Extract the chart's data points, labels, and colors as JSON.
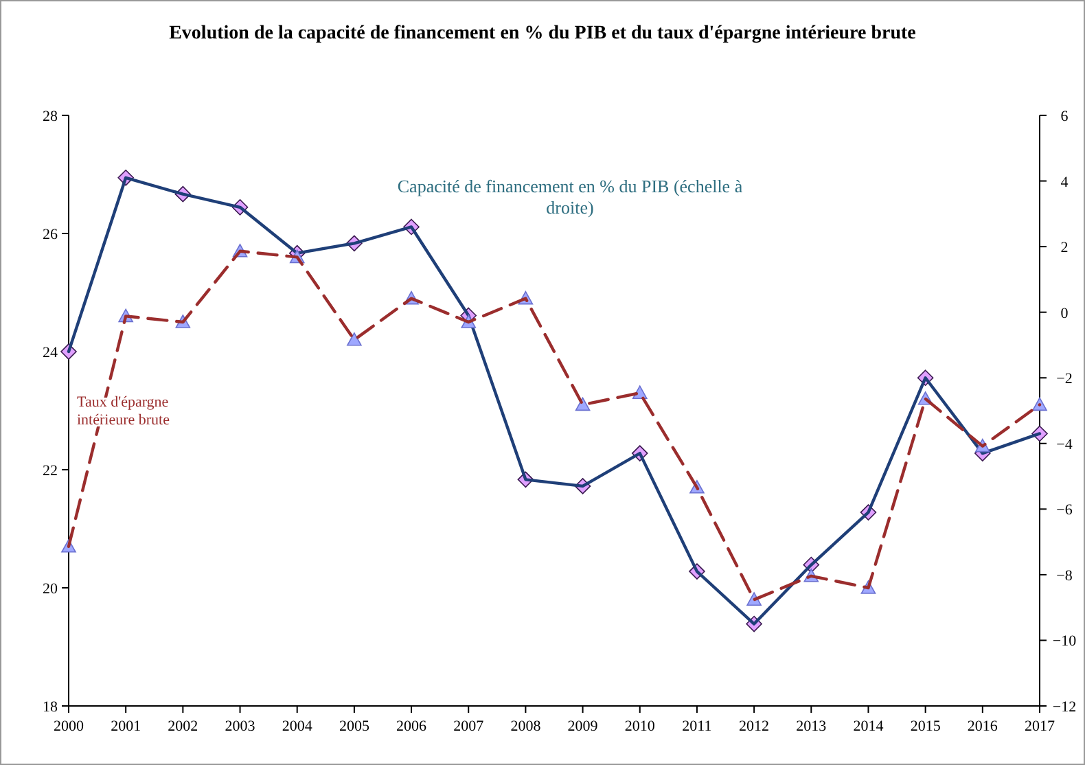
{
  "chart_data": {
    "type": "line",
    "title": "Evolution de la capacité de financement en % du PIB et du taux d'épargne intérieure brute",
    "x": [
      2000,
      2001,
      2002,
      2003,
      2004,
      2005,
      2006,
      2007,
      2008,
      2009,
      2010,
      2011,
      2012,
      2013,
      2014,
      2015,
      2016,
      2017
    ],
    "xlim": [
      2000,
      2017
    ],
    "xticks": [
      2000,
      2001,
      2002,
      2003,
      2004,
      2005,
      2006,
      2007,
      2008,
      2009,
      2010,
      2011,
      2012,
      2013,
      2014,
      2015,
      2016,
      2017
    ],
    "ylim": [
      18,
      28
    ],
    "yticks": [
      18,
      20,
      22,
      24,
      26,
      28
    ],
    "y2lim": [
      -12,
      6
    ],
    "y2ticks": [
      -12,
      -10,
      -8,
      -6,
      -4,
      -2,
      0,
      2,
      4,
      6
    ],
    "series": [
      {
        "name": "Capacité de financement en % du PIB (échelle à droite)",
        "color": "#1f3f78",
        "axis": "y2",
        "marker": "diamond",
        "line_style": "solid",
        "values": [
          -1.2,
          4.1,
          3.6,
          3.2,
          1.8,
          2.1,
          2.6,
          -0.1,
          -5.1,
          -5.3,
          -4.3,
          -7.9,
          -9.5,
          -7.7,
          -6.1,
          -2.0,
          -4.3,
          -3.7
        ]
      },
      {
        "name": "Taux d'épargne intérieure brute",
        "color": "#9b2d2d",
        "marker": "triangle",
        "line_style": "dashed",
        "values": [
          20.7,
          24.6,
          24.5,
          25.7,
          25.6,
          24.2,
          24.9,
          24.5,
          24.9,
          23.1,
          23.3,
          21.7,
          19.8,
          20.2,
          20.0,
          23.2,
          22.4,
          23.1
        ]
      }
    ],
    "grid": false
  }
}
